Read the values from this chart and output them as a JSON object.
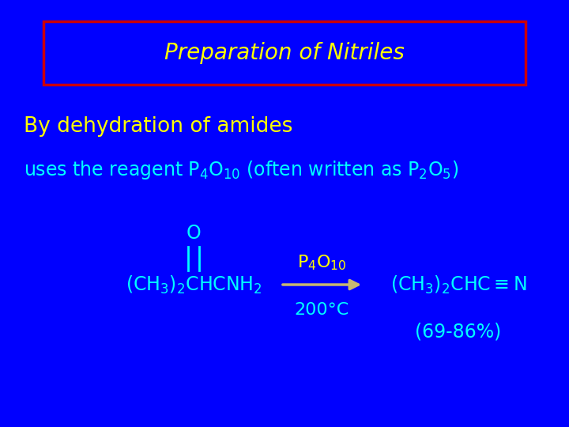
{
  "background_color": "#0000FF",
  "title_text": "Preparation of Nitriles",
  "title_color": "#FFFF00",
  "title_box_edge_color": "#CC0000",
  "title_fontsize": 20,
  "subtitle_text": "By dehydration of amides",
  "subtitle_color": "#FFFF00",
  "subtitle_fontsize": 19,
  "reagent_line_color": "#00FFFF",
  "reagent_fontsize": 17,
  "chem_color": "#00FFFF",
  "chem_fontsize": 17,
  "arrow_color": "#C8B870",
  "yield_color": "#00FFFF",
  "yield_fontsize": 17,
  "p4o10_color": "#FFFF00",
  "temp_color": "#00FFFF"
}
